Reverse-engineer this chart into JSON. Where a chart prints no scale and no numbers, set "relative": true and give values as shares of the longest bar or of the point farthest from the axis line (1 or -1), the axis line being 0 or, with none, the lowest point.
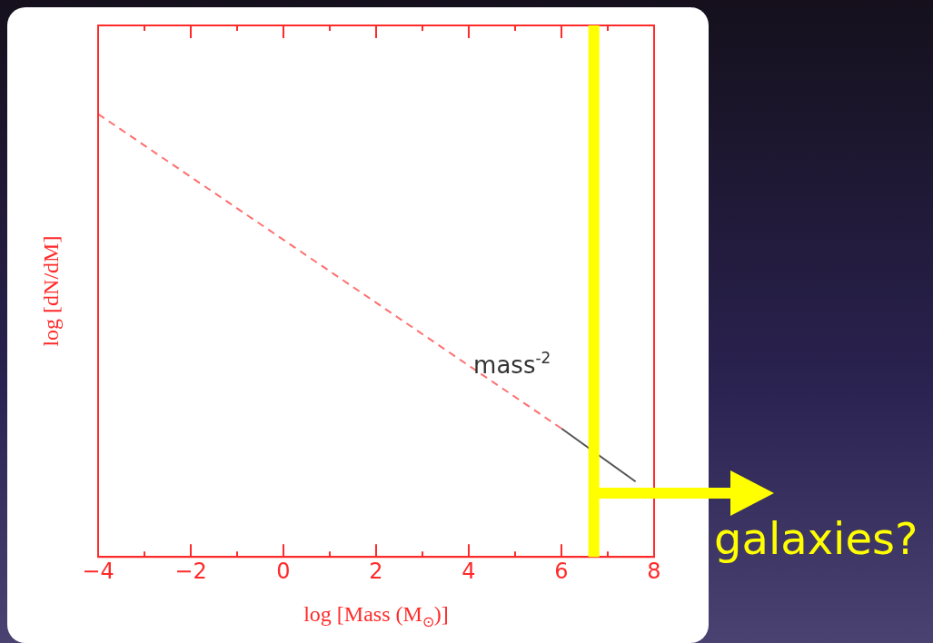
{
  "chart_data": {
    "type": "line",
    "relative": true,
    "xlabel": "log [Mass (M$_{⊙}$)]",
    "ylabel": "log [dN/dM]",
    "xlim": [
      -4,
      8
    ],
    "xticks": [
      -4,
      {
        "value": -3,
        "label": null
      },
      -2,
      {
        "value": -1,
        "label": null
      },
      0,
      {
        "value": 1,
        "label": null
      },
      2,
      {
        "value": 3,
        "label": null
      },
      4,
      {
        "value": 5,
        "label": null
      },
      6,
      {
        "value": 7,
        "label": null
      },
      8
    ],
    "series": [
      {
        "x": [
          -4,
          6
        ],
        "values": [
          1,
          0.29
        ],
        "color": "#ff6f6f",
        "line_style": "dashed"
      },
      {
        "x": [
          6,
          7.6
        ],
        "values": [
          0.29,
          0.17
        ],
        "color": "#555555",
        "line_style": "solid"
      }
    ],
    "ref_lines": [
      {
        "axis": "x",
        "value": 6.7,
        "color": "#ffff00"
      }
    ],
    "annotations": [
      "mass$^{-2}$",
      "galaxies?"
    ],
    "grid": false,
    "legend": false
  }
}
